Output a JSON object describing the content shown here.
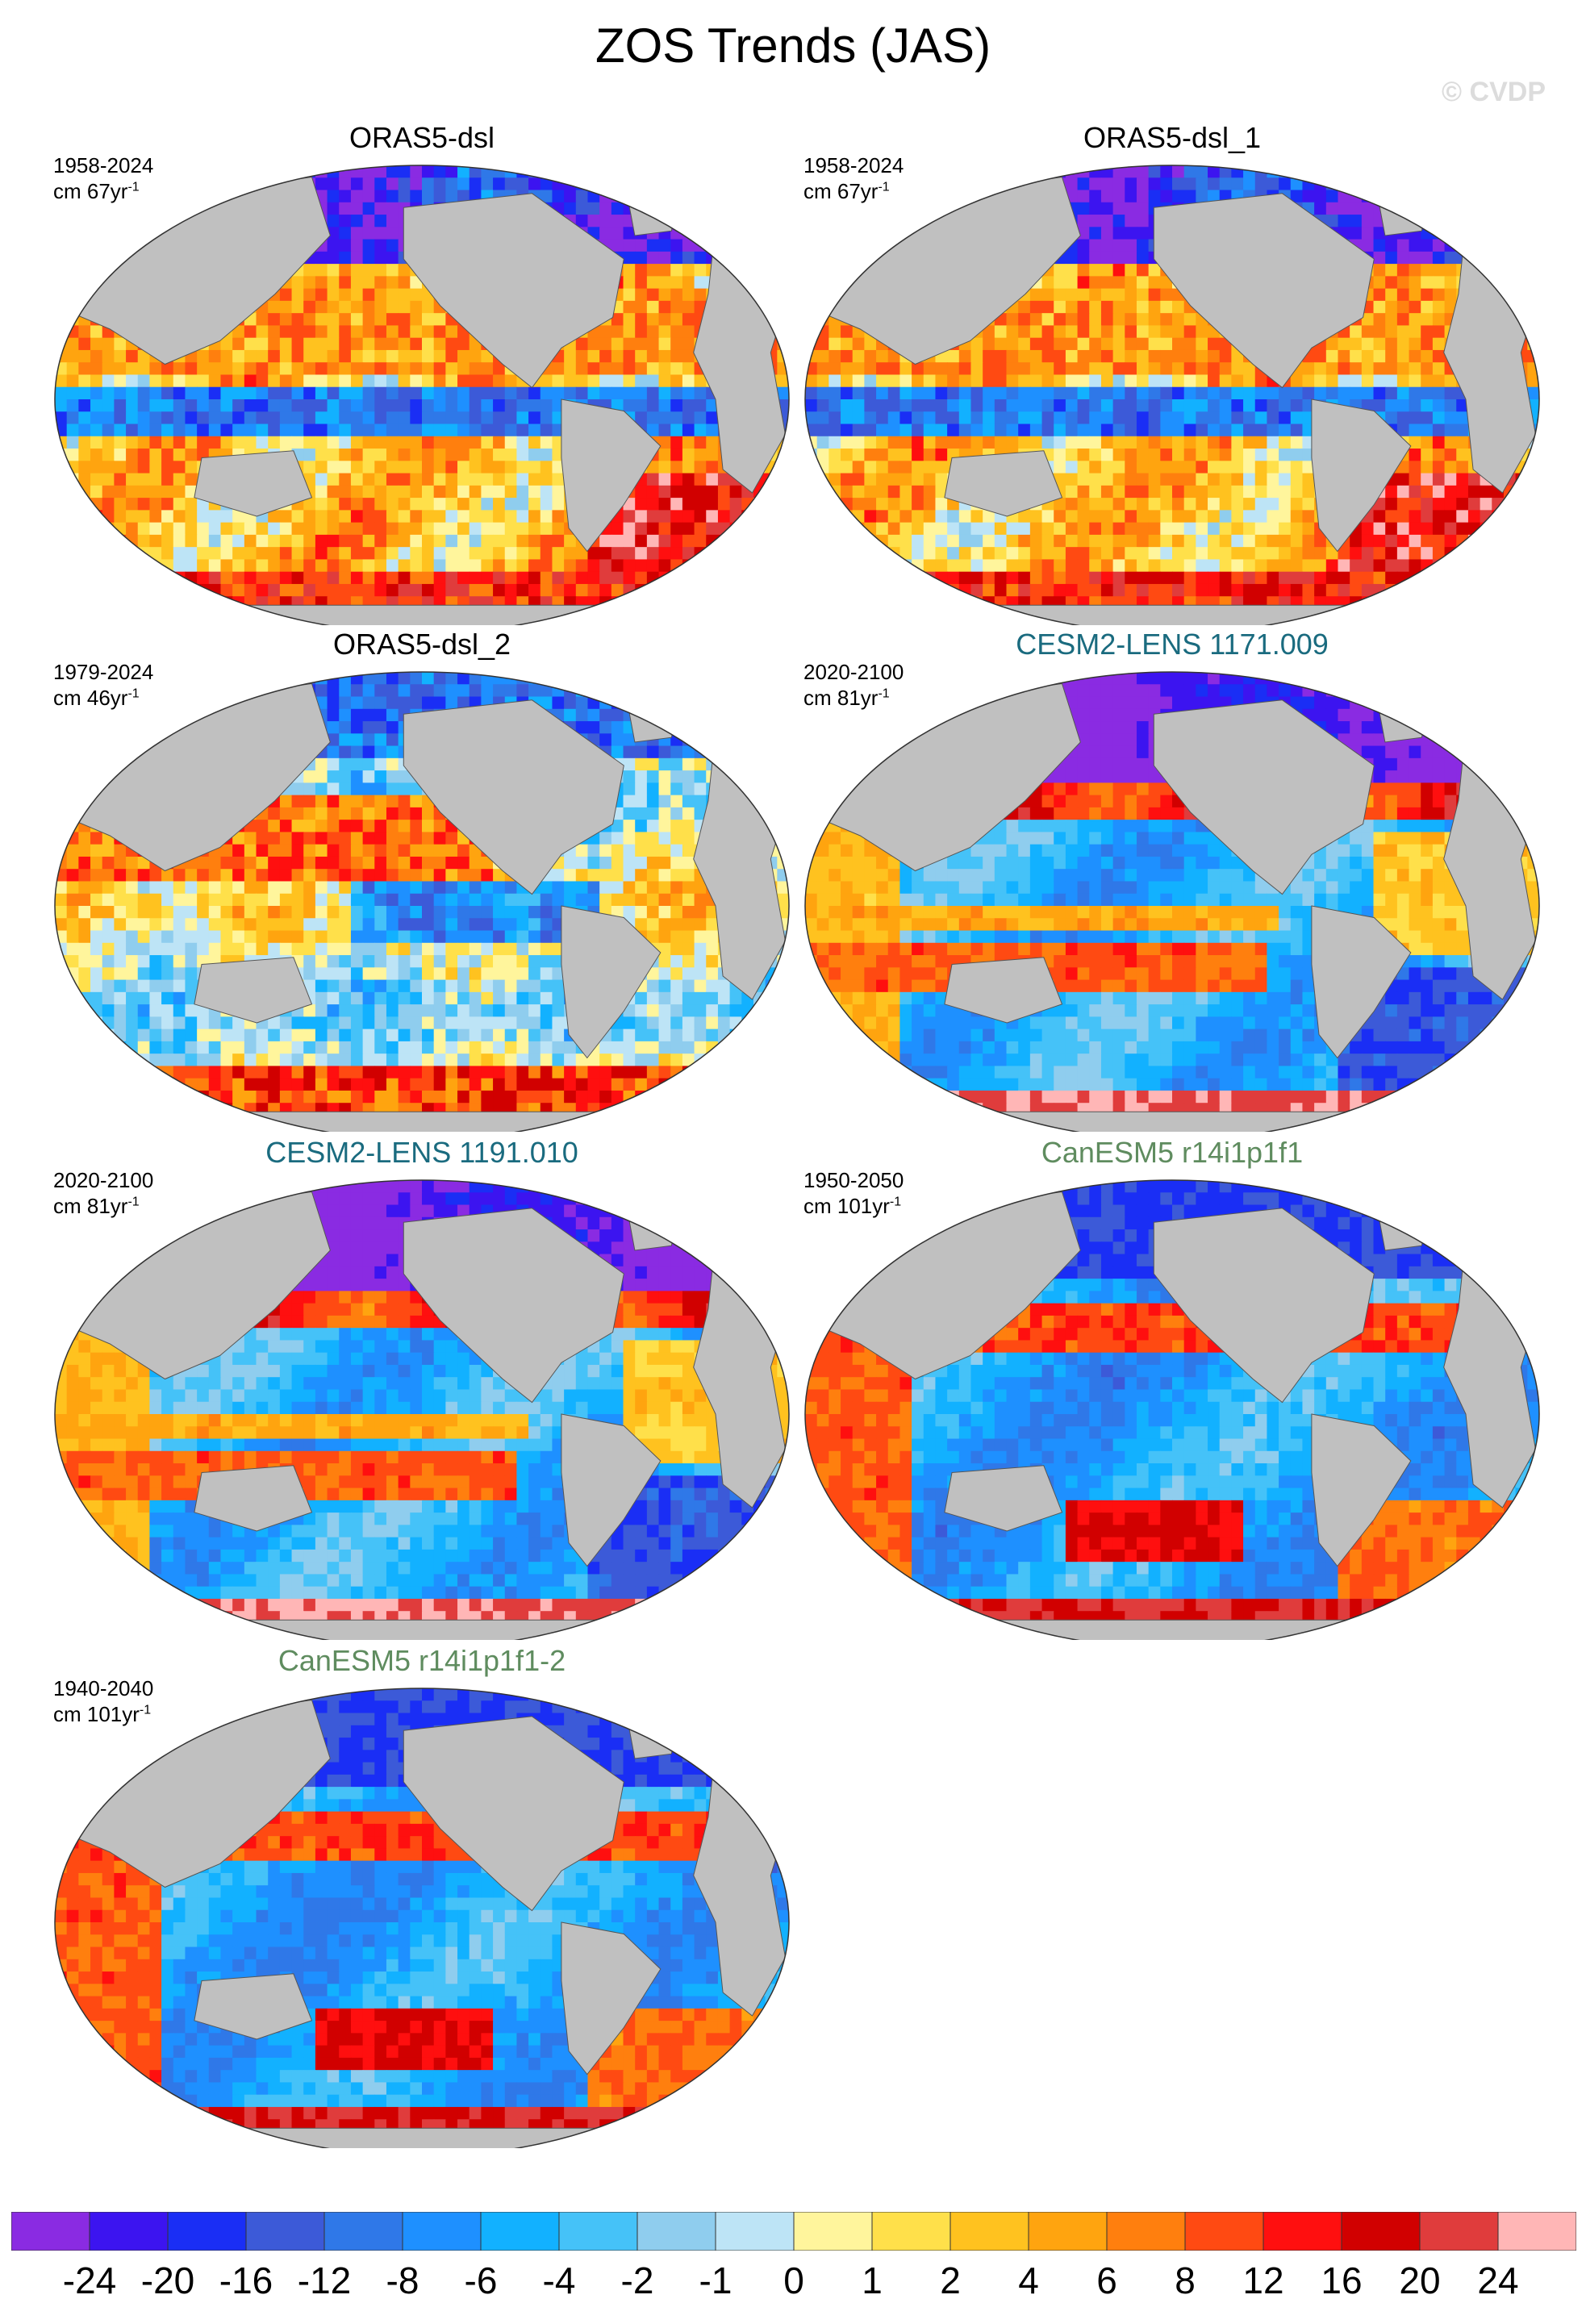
{
  "title": "ZOS Trends (JAS)",
  "watermark": "© CVDP",
  "panels": [
    {
      "title": "ORAS5-dsl",
      "title_color": "#000000",
      "years": "1958-2024",
      "unit": "cm 67yr",
      "unit_sup": "-1",
      "pattern": "oras5"
    },
    {
      "title": "ORAS5-dsl_1",
      "title_color": "#000000",
      "years": "1958-2024",
      "unit": "cm 67yr",
      "unit_sup": "-1",
      "pattern": "oras5"
    },
    {
      "title": "ORAS5-dsl_2",
      "title_color": "#000000",
      "years": "1979-2024",
      "unit": "cm 46yr",
      "unit_sup": "-1",
      "pattern": "oras5b"
    },
    {
      "title": "CESM2-LENS 1171.009",
      "title_color": "#1a6b7f",
      "years": "2020-2100",
      "unit": "cm 81yr",
      "unit_sup": "-1",
      "pattern": "cesm"
    },
    {
      "title": "CESM2-LENS 1191.010",
      "title_color": "#1a6b7f",
      "years": "2020-2100",
      "unit": "cm 81yr",
      "unit_sup": "-1",
      "pattern": "cesm"
    },
    {
      "title": "CanESM5 r14i1p1f1",
      "title_color": "#5f8c5f",
      "years": "1950-2050",
      "unit": "cm 101yr",
      "unit_sup": "-1",
      "pattern": "canesm"
    },
    {
      "title": "CanESM5 r14i1p1f1-2",
      "title_color": "#5f8c5f",
      "years": "1940-2040",
      "unit": "cm 101yr",
      "unit_sup": "-1",
      "pattern": "canesm"
    }
  ],
  "colorbar": {
    "labels": [
      "-24",
      "-20",
      "-16",
      "-12",
      "-8",
      "-6",
      "-4",
      "-2",
      "-1",
      "0",
      "1",
      "2",
      "4",
      "6",
      "8",
      "12",
      "16",
      "20",
      "24"
    ],
    "colors": [
      "#8a2be2",
      "#3c14f0",
      "#1a2ef5",
      "#3c5ad8",
      "#2f78e8",
      "#1e90ff",
      "#12b1ff",
      "#45c2f8",
      "#8fcdee",
      "#bde4f6",
      "#fff59c",
      "#ffe04a",
      "#ffc21f",
      "#ffa40f",
      "#ff7f0e",
      "#ff4a12",
      "#ff0f0f",
      "#d10000",
      "#e03c3c",
      "#ffb6b6"
    ]
  },
  "colors": {
    "land": "#c0c0c0",
    "outline": "#555555"
  }
}
